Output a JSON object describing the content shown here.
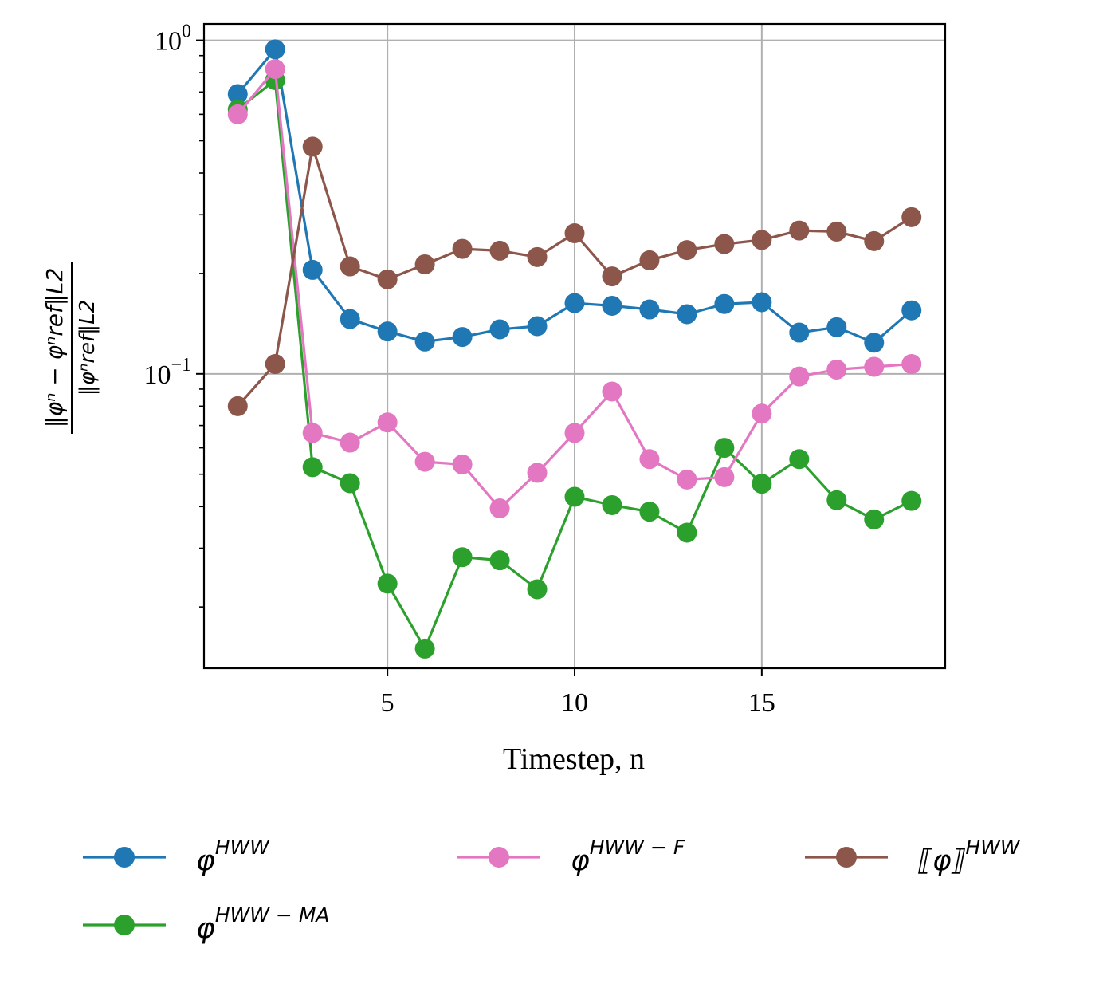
{
  "chart_data": {
    "type": "line",
    "title": "",
    "xlabel": "Timestep, n",
    "ylabel": {
      "numerator": "‖φⁿ − φⁿref‖L2",
      "denominator": "‖φⁿref‖L2"
    },
    "yscale": "log",
    "xlim": [
      0.1,
      19.9
    ],
    "ylim": [
      0.0131,
      1.12
    ],
    "grid": true,
    "x_ticks": [
      5,
      10,
      15
    ],
    "y_ticks": [
      {
        "value": 1.0,
        "base": "10",
        "exp": "0"
      },
      {
        "value": 0.1,
        "base": "10",
        "exp": "−1"
      }
    ],
    "x": [
      1,
      2,
      3,
      4,
      5,
      6,
      7,
      8,
      9,
      10,
      11,
      12,
      13,
      14,
      15,
      16,
      17,
      18,
      19
    ],
    "series": [
      {
        "name": "φ^HWW",
        "base": "φ",
        "sup": "HWW",
        "color": "#1f77b4",
        "values": [
          0.69,
          0.94,
          0.205,
          0.146,
          0.134,
          0.125,
          0.129,
          0.136,
          0.139,
          0.163,
          0.16,
          0.156,
          0.151,
          0.162,
          0.164,
          0.133,
          0.138,
          0.124,
          0.155
        ]
      },
      {
        "name": "φ^HWW−MA",
        "base": "φ",
        "sup": "HWW − MA",
        "color": "#2ca02c",
        "values": [
          0.62,
          0.76,
          0.0525,
          0.047,
          0.0235,
          0.015,
          0.0282,
          0.0276,
          0.0226,
          0.0428,
          0.0404,
          0.0386,
          0.0334,
          0.06,
          0.0468,
          0.0555,
          0.0418,
          0.0366,
          0.0416
        ]
      },
      {
        "name": "φ^HWW−F",
        "base": "φ",
        "sup": "HWW − F",
        "color": "#e377c2",
        "values": [
          0.6,
          0.82,
          0.0665,
          0.0622,
          0.0715,
          0.0545,
          0.0535,
          0.0395,
          0.0505,
          0.0665,
          0.0885,
          0.0555,
          0.0482,
          0.049,
          0.076,
          0.0982,
          0.103,
          0.105,
          0.107
        ]
      },
      {
        "name": "⟦φ⟧^HWW",
        "base": "⟦φ⟧",
        "sup": "HWW",
        "color": "#8c564b",
        "values": [
          0.08,
          0.107,
          0.48,
          0.21,
          0.192,
          0.213,
          0.237,
          0.234,
          0.224,
          0.264,
          0.196,
          0.219,
          0.235,
          0.245,
          0.252,
          0.269,
          0.267,
          0.25,
          0.295
        ]
      }
    ],
    "legend": {
      "placement": "below-plot",
      "order": [
        0,
        2,
        3,
        1
      ]
    }
  }
}
